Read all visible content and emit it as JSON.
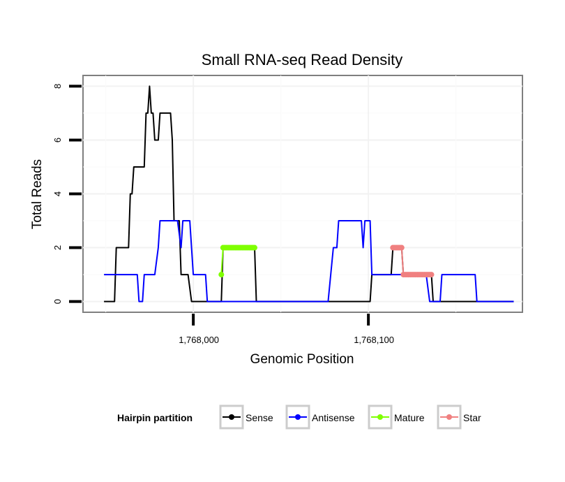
{
  "chart_data": {
    "type": "line",
    "title": "Small RNA-seq Read Density",
    "xlabel": "Genomic Position",
    "ylabel": "Total Reads",
    "xlim": [
      1767937,
      1768188
    ],
    "ylim": [
      -0.4,
      8.4
    ],
    "x_ticks": [
      1768000,
      1768100
    ],
    "x_tick_labels": [
      "1,768,000",
      "1,768,100"
    ],
    "y_ticks": [
      0,
      2,
      4,
      6,
      8
    ],
    "y_tick_labels": [
      "0",
      "2",
      "4",
      "6",
      "8"
    ],
    "grid": true,
    "legend": {
      "title": "Hairpin partition",
      "position": "bottom",
      "entries": [
        {
          "name": "Sense",
          "color": "#000000"
        },
        {
          "name": "Antisense",
          "color": "#0000ff"
        },
        {
          "name": "Mature",
          "color": "#7fff00"
        },
        {
          "name": "Star",
          "color": "#f08080"
        }
      ]
    },
    "series": [
      {
        "name": "Sense",
        "color": "#000000",
        "points": [
          [
            1767949,
            0
          ],
          [
            1767955,
            0
          ],
          [
            1767956,
            2
          ],
          [
            1767963,
            2
          ],
          [
            1767964,
            4
          ],
          [
            1767965,
            4
          ],
          [
            1767966,
            5
          ],
          [
            1767972,
            5
          ],
          [
            1767973,
            7
          ],
          [
            1767974,
            7
          ],
          [
            1767975,
            8
          ],
          [
            1767976,
            7
          ],
          [
            1767977,
            7
          ],
          [
            1767978,
            6
          ],
          [
            1767980,
            6
          ],
          [
            1767981,
            7
          ],
          [
            1767987,
            7
          ],
          [
            1767988,
            6
          ],
          [
            1767989,
            3
          ],
          [
            1767992,
            3
          ],
          [
            1767993,
            1
          ],
          [
            1767997,
            1
          ],
          [
            1767999,
            0
          ],
          [
            1768016,
            0
          ],
          [
            1768017,
            2
          ],
          [
            1768035,
            2
          ],
          [
            1768036,
            0
          ],
          [
            1768101,
            0
          ],
          [
            1768102,
            1
          ],
          [
            1768113,
            1
          ],
          [
            1768114,
            2
          ],
          [
            1768119,
            2
          ],
          [
            1768120,
            1
          ],
          [
            1768136,
            1
          ],
          [
            1768137,
            0
          ],
          [
            1768183,
            0
          ]
        ]
      },
      {
        "name": "Antisense",
        "color": "#0000ff",
        "points": [
          [
            1767949,
            1
          ],
          [
            1767968,
            1
          ],
          [
            1767969,
            0
          ],
          [
            1767971,
            0
          ],
          [
            1767972,
            1
          ],
          [
            1767978,
            1
          ],
          [
            1767980,
            2
          ],
          [
            1767981,
            3
          ],
          [
            1767991,
            3
          ],
          [
            1767993,
            2
          ],
          [
            1767994,
            3
          ],
          [
            1767998,
            3
          ],
          [
            1767999,
            2
          ],
          [
            1768000,
            1
          ],
          [
            1768007,
            1
          ],
          [
            1768008,
            0
          ],
          [
            1768036,
            0
          ],
          [
            1768077,
            0
          ],
          [
            1768080,
            2
          ],
          [
            1768082,
            2
          ],
          [
            1768083,
            3
          ],
          [
            1768096,
            3
          ],
          [
            1768097,
            2
          ],
          [
            1768098,
            3
          ],
          [
            1768101,
            3
          ],
          [
            1768102,
            1
          ],
          [
            1768133,
            1
          ],
          [
            1768135,
            0
          ],
          [
            1768141,
            0
          ],
          [
            1768142,
            1
          ],
          [
            1768161,
            1
          ],
          [
            1768162,
            0
          ],
          [
            1768183,
            0
          ]
        ]
      },
      {
        "name": "Mature",
        "color": "#7fff00",
        "points": [
          [
            1768016,
            1
          ],
          [
            1768017,
            2
          ],
          [
            1768035,
            2
          ]
        ]
      },
      {
        "name": "Star",
        "color": "#f08080",
        "points": [
          [
            1768114,
            2
          ],
          [
            1768119,
            2
          ],
          [
            1768120,
            1
          ],
          [
            1768136,
            1
          ]
        ]
      }
    ]
  }
}
